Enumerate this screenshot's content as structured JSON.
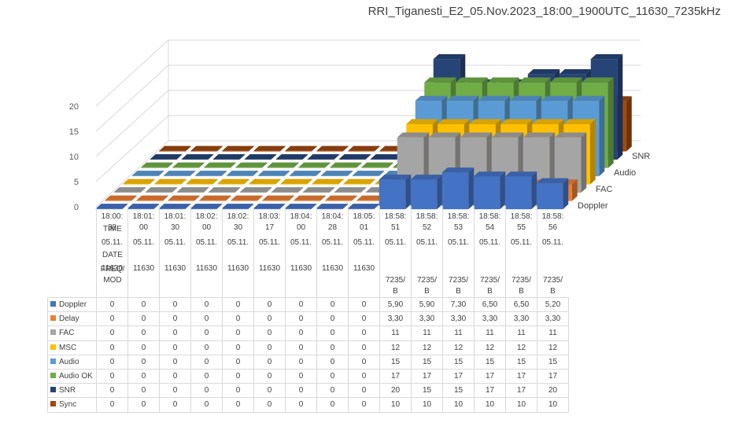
{
  "chart_data": {
    "type": "bar",
    "subtype": "3d-column",
    "title": "RRI_Tiganesti_E2_05.Nov.2023_18:00_1900UTC_11630_7235kHz",
    "zlim": [
      0,
      20
    ],
    "z_ticks": [
      "0",
      "5",
      "10",
      "15",
      "20"
    ],
    "row_labels": [
      "TIME",
      "DATE",
      "FREQ/\nMOD"
    ],
    "categories": [
      {
        "time": [
          "18:00:",
          "38"
        ],
        "date": "05.11.",
        "freq": "11630"
      },
      {
        "time": [
          "18:01:",
          "00"
        ],
        "date": "05.11.",
        "freq": "11630"
      },
      {
        "time": [
          "18:01:",
          "30"
        ],
        "date": "05.11.",
        "freq": "11630"
      },
      {
        "time": [
          "18:02:",
          "00"
        ],
        "date": "05.11.",
        "freq": "11630"
      },
      {
        "time": [
          "18:02:",
          "30"
        ],
        "date": "05.11.",
        "freq": "11630"
      },
      {
        "time": [
          "18:03:",
          "17"
        ],
        "date": "05.11.",
        "freq": "11630"
      },
      {
        "time": [
          "18:04:",
          "00"
        ],
        "date": "05.11.",
        "freq": "11630"
      },
      {
        "time": [
          "18:04:",
          "28"
        ],
        "date": "05.11.",
        "freq": "11630"
      },
      {
        "time": [
          "18:05:",
          "01"
        ],
        "date": "05.11.",
        "freq": "11630"
      },
      {
        "time": [
          "18:58:",
          "51"
        ],
        "date": "05.11.",
        "freq": "7235/\nB"
      },
      {
        "time": [
          "18:58:",
          "52"
        ],
        "date": "05.11.",
        "freq": "7235/\nB"
      },
      {
        "time": [
          "18:58:",
          "53"
        ],
        "date": "05.11.",
        "freq": "7235/\nB"
      },
      {
        "time": [
          "18:58:",
          "54"
        ],
        "date": "05.11.",
        "freq": "7235/\nB"
      },
      {
        "time": [
          "18:58:",
          "55"
        ],
        "date": "05.11.",
        "freq": "7235/\nB"
      },
      {
        "time": [
          "18:58:",
          "56"
        ],
        "date": "05.11.",
        "freq": "7235/\nB"
      }
    ],
    "series": [
      {
        "name": "Doppler",
        "color": "#4472c4",
        "values": [
          0,
          0,
          0,
          0,
          0,
          0,
          0,
          0,
          0,
          5.9,
          5.9,
          7.3,
          6.5,
          6.5,
          5.2
        ],
        "labels": [
          "0",
          "0",
          "0",
          "0",
          "0",
          "0",
          "0",
          "0",
          "0",
          "5,90",
          "5,90",
          "7,30",
          "6,50",
          "6,50",
          "5,20"
        ]
      },
      {
        "name": "Delay",
        "color": "#ed7d31",
        "values": [
          0,
          0,
          0,
          0,
          0,
          0,
          0,
          0,
          0,
          3.3,
          3.3,
          3.3,
          3.3,
          3.3,
          3.3
        ],
        "labels": [
          "0",
          "0",
          "0",
          "0",
          "0",
          "0",
          "0",
          "0",
          "0",
          "3,30",
          "3,30",
          "3,30",
          "3,30",
          "3,30",
          "3,30"
        ]
      },
      {
        "name": "FAC",
        "color": "#a5a5a5",
        "values": [
          0,
          0,
          0,
          0,
          0,
          0,
          0,
          0,
          0,
          11,
          11,
          11,
          11,
          11,
          11
        ],
        "labels": [
          "0",
          "0",
          "0",
          "0",
          "0",
          "0",
          "0",
          "0",
          "0",
          "11",
          "11",
          "11",
          "11",
          "11",
          "11"
        ]
      },
      {
        "name": "MSC",
        "color": "#ffc000",
        "values": [
          0,
          0,
          0,
          0,
          0,
          0,
          0,
          0,
          0,
          12,
          12,
          12,
          12,
          12,
          12
        ],
        "labels": [
          "0",
          "0",
          "0",
          "0",
          "0",
          "0",
          "0",
          "0",
          "0",
          "12",
          "12",
          "12",
          "12",
          "12",
          "12"
        ]
      },
      {
        "name": "Audio",
        "color": "#5b9bd5",
        "values": [
          0,
          0,
          0,
          0,
          0,
          0,
          0,
          0,
          0,
          15,
          15,
          15,
          15,
          15,
          15
        ],
        "labels": [
          "0",
          "0",
          "0",
          "0",
          "0",
          "0",
          "0",
          "0",
          "0",
          "15",
          "15",
          "15",
          "15",
          "15",
          "15"
        ]
      },
      {
        "name": "Audio OK",
        "color": "#70ad47",
        "values": [
          0,
          0,
          0,
          0,
          0,
          0,
          0,
          0,
          0,
          17,
          17,
          17,
          17,
          17,
          17
        ],
        "labels": [
          "0",
          "0",
          "0",
          "0",
          "0",
          "0",
          "0",
          "0",
          "0",
          "17",
          "17",
          "17",
          "17",
          "17",
          "17"
        ]
      },
      {
        "name": "SNR",
        "color": "#264478",
        "values": [
          0,
          0,
          0,
          0,
          0,
          0,
          0,
          0,
          0,
          20,
          15,
          15,
          17,
          17,
          20
        ],
        "labels": [
          "0",
          "0",
          "0",
          "0",
          "0",
          "0",
          "0",
          "0",
          "0",
          "20",
          "15",
          "15",
          "17",
          "17",
          "20"
        ]
      },
      {
        "name": "Sync",
        "color": "#9e480e",
        "values": [
          0,
          0,
          0,
          0,
          0,
          0,
          0,
          0,
          0,
          10,
          10,
          10,
          10,
          10,
          10
        ],
        "labels": [
          "0",
          "0",
          "0",
          "0",
          "0",
          "0",
          "0",
          "0",
          "0",
          "10",
          "10",
          "10",
          "10",
          "10",
          "10"
        ]
      }
    ],
    "depth_axis_labels": [
      "Doppler",
      "FAC",
      "Audio",
      "SNR"
    ],
    "legend": "table-bottom"
  }
}
